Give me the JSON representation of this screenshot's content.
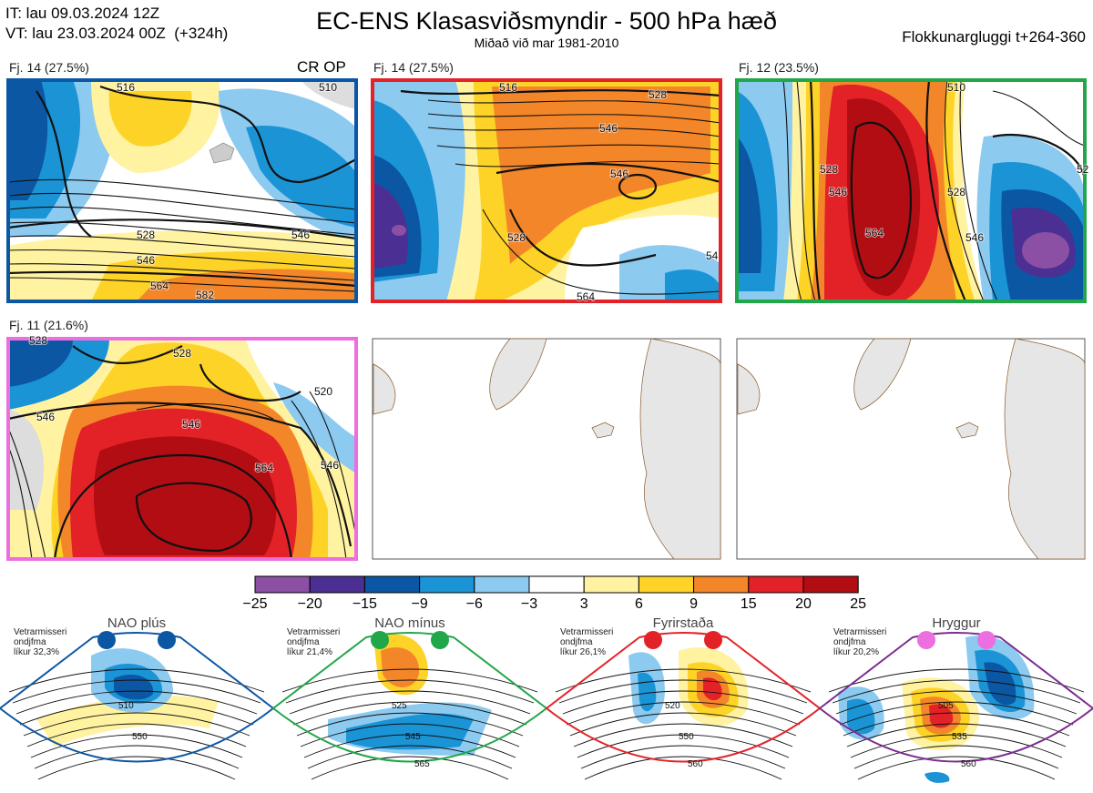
{
  "header": {
    "init_time": "IT: lau 09.03.2024 12Z",
    "valid_time": "VT: lau 23.03.2024 00Z  (+324h)",
    "title": "EC-ENS Klasasviðsmyndir - 500 hPa hæð",
    "subtitle": "Miðað við mar 1981-2010",
    "window": "Flokkunargluggi t+264-360"
  },
  "clusters": [
    {
      "label": "Fj. 14 (27.5%)",
      "frame_color": "#0b57a4",
      "tag": "CR OP",
      "contour_labels": [
        "516",
        "510",
        "528",
        "546",
        "564",
        "582",
        "546"
      ]
    },
    {
      "label": "Fj. 14 (27.5%)",
      "frame_color": "#e32227",
      "contour_labels": [
        "516",
        "528",
        "546",
        "528",
        "546",
        "564",
        "54"
      ]
    },
    {
      "label": "Fj. 12 (23.5%)",
      "frame_color": "#22a64a",
      "contour_labels": [
        "510",
        "528",
        "546",
        "564",
        "528",
        "546",
        "52"
      ]
    },
    {
      "label": "Fj. 11 (21.6%)",
      "frame_color": "#ec6ee0",
      "contour_labels": [
        "528",
        "528",
        "520",
        "546",
        "546",
        "564",
        "546"
      ]
    }
  ],
  "colorbar": {
    "ticks": [
      "−25",
      "−20",
      "−15",
      "−9",
      "−6",
      "−3",
      "3",
      "6",
      "9",
      "15",
      "20",
      "25"
    ],
    "colors": [
      "#8b4fa4",
      "#4b2f93",
      "#0b57a4",
      "#1b94d6",
      "#8ccaf0",
      "#ffffff",
      "#fff2a0",
      "#fcd326",
      "#f4862a",
      "#e32227",
      "#b10d13"
    ]
  },
  "regimes": [
    {
      "name": "NAO plús",
      "color": "#0b57a4",
      "frame": "#0b57a4",
      "stat": [
        "Vetrarmisseri",
        "ondjfma",
        "líkur 32,3%"
      ],
      "labels": [
        "510",
        "550"
      ]
    },
    {
      "name": "NAO mínus",
      "color": "#22a64a",
      "frame": "#22a64a",
      "stat": [
        "Vetrarmisseri",
        "ondjfma",
        "líkur 21,4%"
      ],
      "labels": [
        "525",
        "545",
        "565"
      ]
    },
    {
      "name": "Fyrirstaða",
      "color": "#e32227",
      "frame": "#e32227",
      "stat": [
        "Vetrarmisseri",
        "ondjfma",
        "líkur 26,1%"
      ],
      "labels": [
        "520",
        "550",
        "560"
      ]
    },
    {
      "name": "Hryggur",
      "color": "#ec6ee0",
      "frame": "#7b2d8e",
      "stat": [
        "Vetrarmisseri",
        "ondjfma",
        "líkur 20,2%"
      ],
      "labels": [
        "505",
        "535",
        "560"
      ]
    }
  ]
}
